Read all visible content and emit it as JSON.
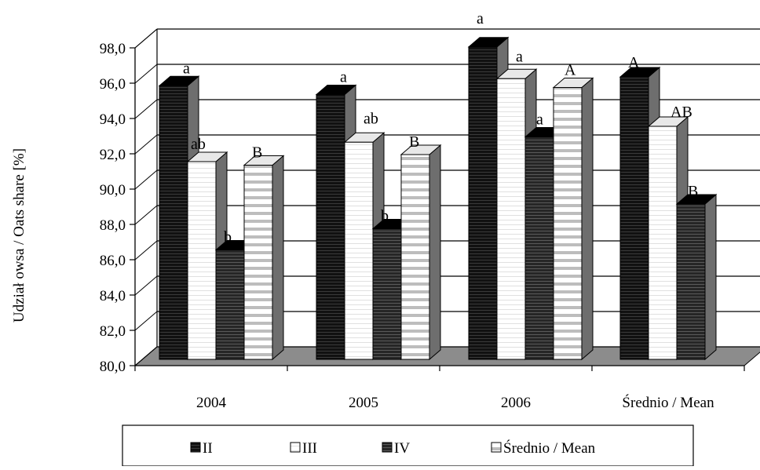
{
  "chart_data": {
    "type": "bar",
    "title": "",
    "xlabel": "",
    "ylabel": "Udział owsa / Oats share [%]",
    "ylim": [
      80,
      98
    ],
    "yticks": [
      "80,0",
      "82,0",
      "84,0",
      "86,0",
      "88,0",
      "90,0",
      "92,0",
      "94,0",
      "96,0",
      "98,0"
    ],
    "grid": true,
    "three_d": true,
    "legend_position": "bottom",
    "categories": [
      "2004",
      "2005",
      "2006",
      "Średnio / Mean"
    ],
    "series": [
      {
        "name": "II",
        "pattern": "black",
        "values": [
          95.5,
          95.0,
          97.7,
          96.0
        ],
        "labels": [
          "a",
          "a",
          "a",
          "A"
        ]
      },
      {
        "name": "III",
        "pattern": "white",
        "values": [
          91.2,
          92.3,
          95.9,
          93.2
        ],
        "labels": [
          "ab",
          "ab",
          "a",
          "AB"
        ]
      },
      {
        "name": "IV",
        "pattern": "dark-stripe",
        "values": [
          86.2,
          87.4,
          92.6,
          88.8
        ],
        "labels": [
          "b",
          "b",
          "a",
          "B"
        ]
      },
      {
        "name": "Średnio / Mean",
        "pattern": "light-stripe",
        "values": [
          91.0,
          91.6,
          95.4,
          null
        ],
        "labels": [
          "B",
          "B",
          "A",
          ""
        ]
      }
    ]
  },
  "colors": {
    "floor": "#8c8c8c",
    "black_bar": "#111111",
    "dark_bar": "#2a2a2a",
    "stripe": "#bdbdbd",
    "side_shade": "#6e6e6e"
  }
}
